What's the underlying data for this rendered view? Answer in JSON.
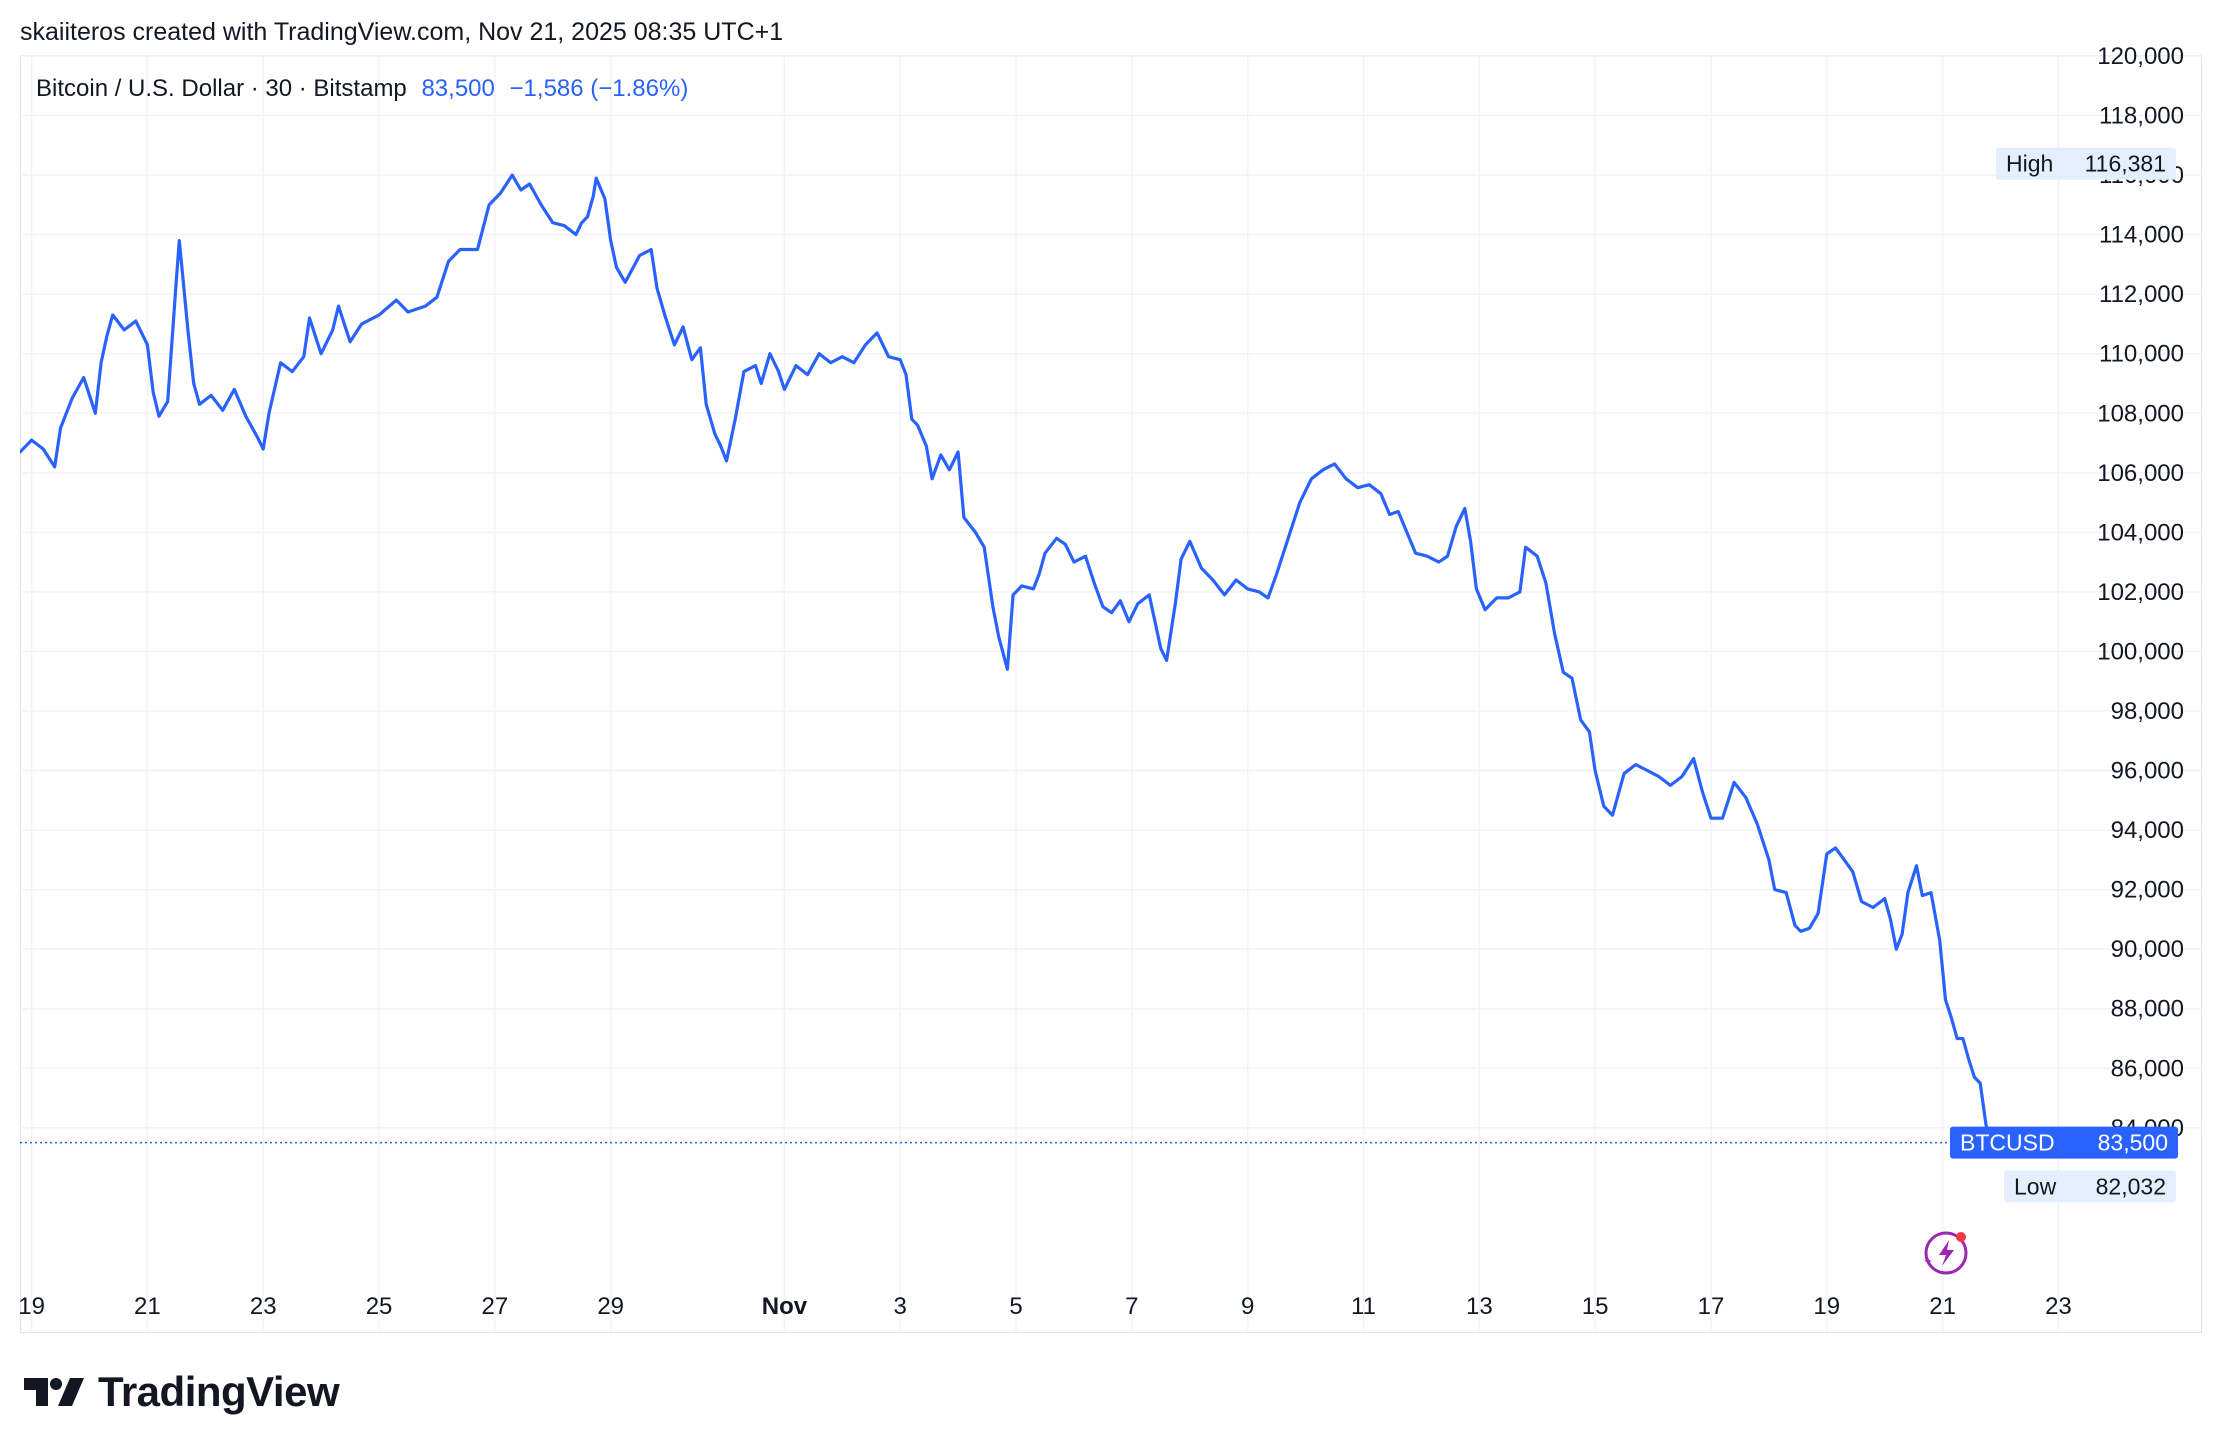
{
  "header": {
    "credit": "skaiiteros created with TradingView.com, Nov 21, 2025 08:35 UTC+1"
  },
  "legend": {
    "symbol": "Bitcoin / U.S. Dollar · 30 · Bitstamp",
    "last": "83,500",
    "change": "−1,586 (−1.86%)"
  },
  "markers": {
    "high_label": "High",
    "high_value": "116,381",
    "low_label": "Low",
    "low_value": "82,032",
    "price_symbol": "BTCUSD",
    "price_value": "83,500"
  },
  "footer": {
    "brand": "TradingView"
  },
  "colors": {
    "line": "#2962ff",
    "grid": "#f0f3fa",
    "text": "#131722",
    "marker_bg": "#e3effd",
    "accent_icon": "#9c27b0"
  },
  "icons": [
    "tradingview-logo-icon",
    "lightning-sparkle-icon"
  ],
  "chart_data": {
    "type": "line",
    "ylim": [
      80500,
      120000
    ],
    "xlim": [
      -0.2,
      35.2
    ],
    "yticks": [
      84000,
      86000,
      88000,
      90000,
      92000,
      94000,
      96000,
      98000,
      100000,
      102000,
      104000,
      106000,
      108000,
      110000,
      112000,
      114000,
      116000,
      118000,
      120000
    ],
    "ytick_labels": [
      "84,000",
      "86,000",
      "88,000",
      "90,000",
      "92,000",
      "94,000",
      "96,000",
      "98,000",
      "100,000",
      "102,000",
      "104,000",
      "106,000",
      "108,000",
      "110,000",
      "112,000",
      "114,000",
      "116,000",
      "118,000",
      "120,000"
    ],
    "xticks": [
      {
        "x": 0,
        "label": "19",
        "bold": false
      },
      {
        "x": 2,
        "label": "21",
        "bold": false
      },
      {
        "x": 4,
        "label": "23",
        "bold": false
      },
      {
        "x": 6,
        "label": "25",
        "bold": false
      },
      {
        "x": 8,
        "label": "27",
        "bold": false
      },
      {
        "x": 10,
        "label": "29",
        "bold": false
      },
      {
        "x": 13,
        "label": "Nov",
        "bold": true
      },
      {
        "x": 15,
        "label": "3",
        "bold": false
      },
      {
        "x": 17,
        "label": "5",
        "bold": false
      },
      {
        "x": 19,
        "label": "7",
        "bold": false
      },
      {
        "x": 21,
        "label": "9",
        "bold": false
      },
      {
        "x": 23,
        "label": "11",
        "bold": false
      },
      {
        "x": 25,
        "label": "13",
        "bold": false
      },
      {
        "x": 27,
        "label": "15",
        "bold": false
      },
      {
        "x": 29,
        "label": "17",
        "bold": false
      },
      {
        "x": 31,
        "label": "19",
        "bold": false
      },
      {
        "x": 33,
        "label": "21",
        "bold": false
      },
      {
        "x": 35,
        "label": "23",
        "bold": false
      }
    ],
    "high": 116381,
    "low": 82032,
    "last": 83500,
    "series": [
      {
        "points": [
          [
            -0.35,
            107000
          ],
          [
            -0.2,
            106700
          ],
          [
            0,
            107100
          ],
          [
            0.2,
            106800
          ],
          [
            0.4,
            106200
          ],
          [
            0.5,
            107500
          ],
          [
            0.7,
            108500
          ],
          [
            0.9,
            109200
          ],
          [
            1.1,
            108000
          ],
          [
            1.2,
            109700
          ],
          [
            1.3,
            110600
          ],
          [
            1.4,
            111300
          ],
          [
            1.6,
            110800
          ],
          [
            1.8,
            111100
          ],
          [
            2.0,
            110300
          ],
          [
            2.1,
            108700
          ],
          [
            2.2,
            107900
          ],
          [
            2.35,
            108400
          ],
          [
            2.5,
            112500
          ],
          [
            2.55,
            113800
          ],
          [
            2.7,
            110800
          ],
          [
            2.8,
            109000
          ],
          [
            2.9,
            108300
          ],
          [
            3.1,
            108600
          ],
          [
            3.3,
            108100
          ],
          [
            3.5,
            108800
          ],
          [
            3.7,
            107900
          ],
          [
            3.9,
            107200
          ],
          [
            4.0,
            106800
          ],
          [
            4.1,
            108000
          ],
          [
            4.3,
            109700
          ],
          [
            4.5,
            109400
          ],
          [
            4.7,
            109900
          ],
          [
            4.8,
            111200
          ],
          [
            5.0,
            110000
          ],
          [
            5.2,
            110800
          ],
          [
            5.3,
            111600
          ],
          [
            5.5,
            110400
          ],
          [
            5.7,
            111000
          ],
          [
            6.0,
            111300
          ],
          [
            6.3,
            111800
          ],
          [
            6.5,
            111400
          ],
          [
            6.8,
            111600
          ],
          [
            7.0,
            111900
          ],
          [
            7.2,
            113100
          ],
          [
            7.4,
            113500
          ],
          [
            7.7,
            113500
          ],
          [
            7.9,
            115000
          ],
          [
            8.1,
            115400
          ],
          [
            8.3,
            116000
          ],
          [
            8.45,
            115500
          ],
          [
            8.6,
            115700
          ],
          [
            8.8,
            115000
          ],
          [
            9.0,
            114400
          ],
          [
            9.2,
            114300
          ],
          [
            9.4,
            114000
          ],
          [
            9.5,
            114400
          ],
          [
            9.6,
            114600
          ],
          [
            9.7,
            115300
          ],
          [
            9.75,
            115900
          ],
          [
            9.9,
            115200
          ],
          [
            10.0,
            113800
          ],
          [
            10.1,
            112900
          ],
          [
            10.25,
            112400
          ],
          [
            10.5,
            113300
          ],
          [
            10.7,
            113500
          ],
          [
            10.8,
            112200
          ],
          [
            10.95,
            111200
          ],
          [
            11.1,
            110300
          ],
          [
            11.25,
            110900
          ],
          [
            11.4,
            109800
          ],
          [
            11.55,
            110200
          ],
          [
            11.65,
            108300
          ],
          [
            11.8,
            107300
          ],
          [
            11.9,
            106900
          ],
          [
            12.0,
            106400
          ],
          [
            12.15,
            107800
          ],
          [
            12.3,
            109400
          ],
          [
            12.5,
            109600
          ],
          [
            12.6,
            109000
          ],
          [
            12.75,
            110000
          ],
          [
            12.9,
            109400
          ],
          [
            13.0,
            108800
          ],
          [
            13.2,
            109600
          ],
          [
            13.4,
            109300
          ],
          [
            13.6,
            110000
          ],
          [
            13.8,
            109700
          ],
          [
            14.0,
            109900
          ],
          [
            14.2,
            109700
          ],
          [
            14.4,
            110300
          ],
          [
            14.6,
            110700
          ],
          [
            14.8,
            109900
          ],
          [
            15.0,
            109800
          ],
          [
            15.1,
            109300
          ],
          [
            15.2,
            107800
          ],
          [
            15.3,
            107600
          ],
          [
            15.45,
            106900
          ],
          [
            15.55,
            105800
          ],
          [
            15.7,
            106600
          ],
          [
            15.85,
            106100
          ],
          [
            16.0,
            106700
          ],
          [
            16.1,
            104500
          ],
          [
            16.3,
            104000
          ],
          [
            16.45,
            103500
          ],
          [
            16.6,
            101500
          ],
          [
            16.7,
            100500
          ],
          [
            16.85,
            99400
          ],
          [
            16.95,
            101900
          ],
          [
            17.1,
            102200
          ],
          [
            17.3,
            102100
          ],
          [
            17.4,
            102600
          ],
          [
            17.5,
            103300
          ],
          [
            17.7,
            103800
          ],
          [
            17.85,
            103600
          ],
          [
            18.0,
            103000
          ],
          [
            18.2,
            103200
          ],
          [
            18.35,
            102300
          ],
          [
            18.5,
            101500
          ],
          [
            18.65,
            101300
          ],
          [
            18.8,
            101700
          ],
          [
            18.95,
            101000
          ],
          [
            19.1,
            101600
          ],
          [
            19.3,
            101900
          ],
          [
            19.5,
            100100
          ],
          [
            19.6,
            99700
          ],
          [
            19.75,
            101600
          ],
          [
            19.85,
            103100
          ],
          [
            20.0,
            103700
          ],
          [
            20.2,
            102800
          ],
          [
            20.4,
            102400
          ],
          [
            20.6,
            101900
          ],
          [
            20.8,
            102400
          ],
          [
            21.0,
            102100
          ],
          [
            21.2,
            102000
          ],
          [
            21.35,
            101800
          ],
          [
            21.5,
            102600
          ],
          [
            21.7,
            103800
          ],
          [
            21.9,
            105000
          ],
          [
            22.1,
            105800
          ],
          [
            22.3,
            106100
          ],
          [
            22.5,
            106300
          ],
          [
            22.7,
            105800
          ],
          [
            22.9,
            105500
          ],
          [
            23.1,
            105600
          ],
          [
            23.3,
            105300
          ],
          [
            23.45,
            104600
          ],
          [
            23.6,
            104700
          ],
          [
            23.75,
            104000
          ],
          [
            23.9,
            103300
          ],
          [
            24.1,
            103200
          ],
          [
            24.3,
            103000
          ],
          [
            24.45,
            103200
          ],
          [
            24.6,
            104200
          ],
          [
            24.75,
            104800
          ],
          [
            24.85,
            103700
          ],
          [
            24.95,
            102100
          ],
          [
            25.1,
            101400
          ],
          [
            25.3,
            101800
          ],
          [
            25.5,
            101800
          ],
          [
            25.7,
            102000
          ],
          [
            25.8,
            103500
          ],
          [
            26.0,
            103200
          ],
          [
            26.15,
            102300
          ],
          [
            26.3,
            100600
          ],
          [
            26.45,
            99300
          ],
          [
            26.6,
            99100
          ],
          [
            26.75,
            97700
          ],
          [
            26.9,
            97300
          ],
          [
            27.0,
            96000
          ],
          [
            27.15,
            94800
          ],
          [
            27.3,
            94500
          ],
          [
            27.5,
            95900
          ],
          [
            27.7,
            96200
          ],
          [
            27.9,
            96000
          ],
          [
            28.1,
            95800
          ],
          [
            28.3,
            95500
          ],
          [
            28.5,
            95800
          ],
          [
            28.7,
            96400
          ],
          [
            28.85,
            95300
          ],
          [
            29.0,
            94400
          ],
          [
            29.2,
            94400
          ],
          [
            29.4,
            95600
          ],
          [
            29.6,
            95100
          ],
          [
            29.8,
            94200
          ],
          [
            30.0,
            93000
          ],
          [
            30.1,
            92000
          ],
          [
            30.3,
            91900
          ],
          [
            30.45,
            90800
          ],
          [
            30.55,
            90600
          ],
          [
            30.7,
            90700
          ],
          [
            30.85,
            91200
          ],
          [
            31.0,
            93200
          ],
          [
            31.15,
            93400
          ],
          [
            31.3,
            93000
          ],
          [
            31.45,
            92600
          ],
          [
            31.6,
            91600
          ],
          [
            31.8,
            91400
          ],
          [
            32.0,
            91700
          ],
          [
            32.1,
            91000
          ],
          [
            32.2,
            90000
          ],
          [
            32.3,
            90500
          ],
          [
            32.4,
            91900
          ],
          [
            32.55,
            92800
          ],
          [
            32.65,
            91800
          ],
          [
            32.8,
            91900
          ],
          [
            32.95,
            90300
          ],
          [
            33.05,
            88300
          ],
          [
            33.15,
            87700
          ],
          [
            33.25,
            87000
          ],
          [
            33.35,
            87000
          ],
          [
            33.45,
            86300
          ],
          [
            33.55,
            85700
          ],
          [
            33.65,
            85500
          ],
          [
            33.75,
            84100
          ],
          [
            33.85,
            83500
          ]
        ]
      }
    ]
  }
}
